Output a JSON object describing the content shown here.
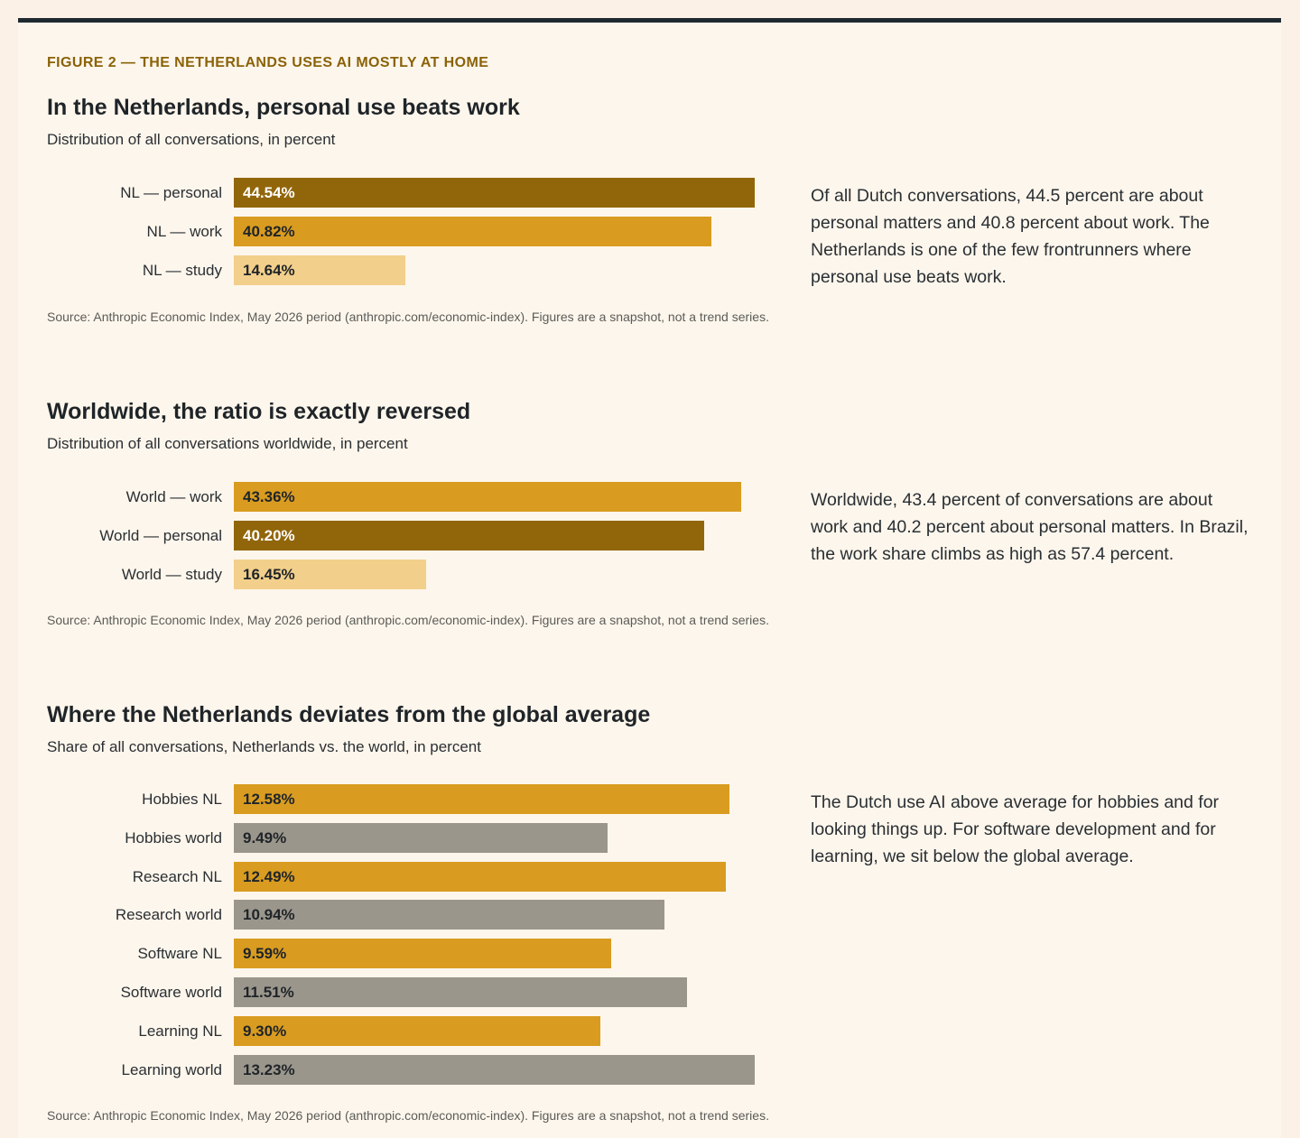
{
  "kicker": "FIGURE 2 — THE NETHERLANDS USES AI MOSTLY AT HOME",
  "colors": {
    "personal": "#91660a",
    "work": "#d99c20",
    "study": "#f2cf8b",
    "world": "#9b968c",
    "text_on_dark": "#ffffff",
    "text_on_light": "#1f2428"
  },
  "sections": [
    {
      "title": "In the Netherlands, personal use beats work",
      "subtitle": "Distribution of all conversations, in percent",
      "note": "Of all Dutch conversations, 44.5 percent are about personal matters and 40.8 percent about work. The Netherlands is one of the few frontrunners where personal use beats work.",
      "source": "Source: Anthropic Economic Index, May 2026 period (anthropic.com/economic-index). Figures are a snapshot, not a trend series."
    },
    {
      "title": "Worldwide, the ratio is exactly reversed",
      "subtitle": "Distribution of all conversations worldwide, in percent",
      "note": "Worldwide, 43.4 percent of conversations are about work and 40.2 percent about personal matters. In Brazil, the work share climbs as high as 57.4 percent.",
      "source": "Source: Anthropic Economic Index, May 2026 period (anthropic.com/economic-index). Figures are a snapshot, not a trend series."
    },
    {
      "title": "Where the Netherlands deviates from the global average",
      "subtitle": "Share of all conversations, Netherlands vs. the world, in percent",
      "note": "The Dutch use AI above average for hobbies and for looking things up. For software development and for learning, we sit below the global average.",
      "source": "Source: Anthropic Economic Index, May 2026 period (anthropic.com/economic-index). Figures are a snapshot, not a trend series."
    }
  ],
  "chart_data": [
    {
      "type": "bar",
      "orientation": "horizontal",
      "title": "In the Netherlands, personal use beats work",
      "subtitle": "Distribution of all conversations, in percent",
      "categories": [
        "NL — personal",
        "NL — work",
        "NL — study"
      ],
      "values": [
        44.54,
        40.82,
        14.64
      ],
      "labels": [
        "44.54%",
        "40.82%",
        "14.64%"
      ],
      "bar_colors": [
        "personal",
        "work",
        "study"
      ],
      "xlim": [
        0,
        44.54
      ],
      "grid": false
    },
    {
      "type": "bar",
      "orientation": "horizontal",
      "title": "Worldwide, the ratio is exactly reversed",
      "subtitle": "Distribution of all conversations worldwide, in percent",
      "categories": [
        "World — work",
        "World — personal",
        "World — study"
      ],
      "values": [
        43.36,
        40.2,
        16.45
      ],
      "labels": [
        "43.36%",
        "40.20%",
        "16.45%"
      ],
      "bar_colors": [
        "work",
        "personal",
        "study"
      ],
      "xlim": [
        0,
        44.54
      ],
      "grid": false
    },
    {
      "type": "bar",
      "orientation": "horizontal",
      "title": "Where the Netherlands deviates from the global average",
      "subtitle": "Share of all conversations, Netherlands vs. the world, in percent",
      "categories": [
        "Hobbies NL",
        "Hobbies world",
        "Research NL",
        "Research world",
        "Software NL",
        "Software world",
        "Learning NL",
        "Learning world"
      ],
      "values": [
        12.58,
        9.49,
        12.49,
        10.94,
        9.59,
        11.51,
        9.3,
        13.23
      ],
      "labels": [
        "12.58%",
        "9.49%",
        "12.49%",
        "10.94%",
        "9.59%",
        "11.51%",
        "9.30%",
        "13.23%"
      ],
      "bar_colors": [
        "work",
        "world",
        "work",
        "world",
        "work",
        "world",
        "work",
        "world"
      ],
      "xlim": [
        0,
        13.23
      ],
      "grid": false
    }
  ]
}
